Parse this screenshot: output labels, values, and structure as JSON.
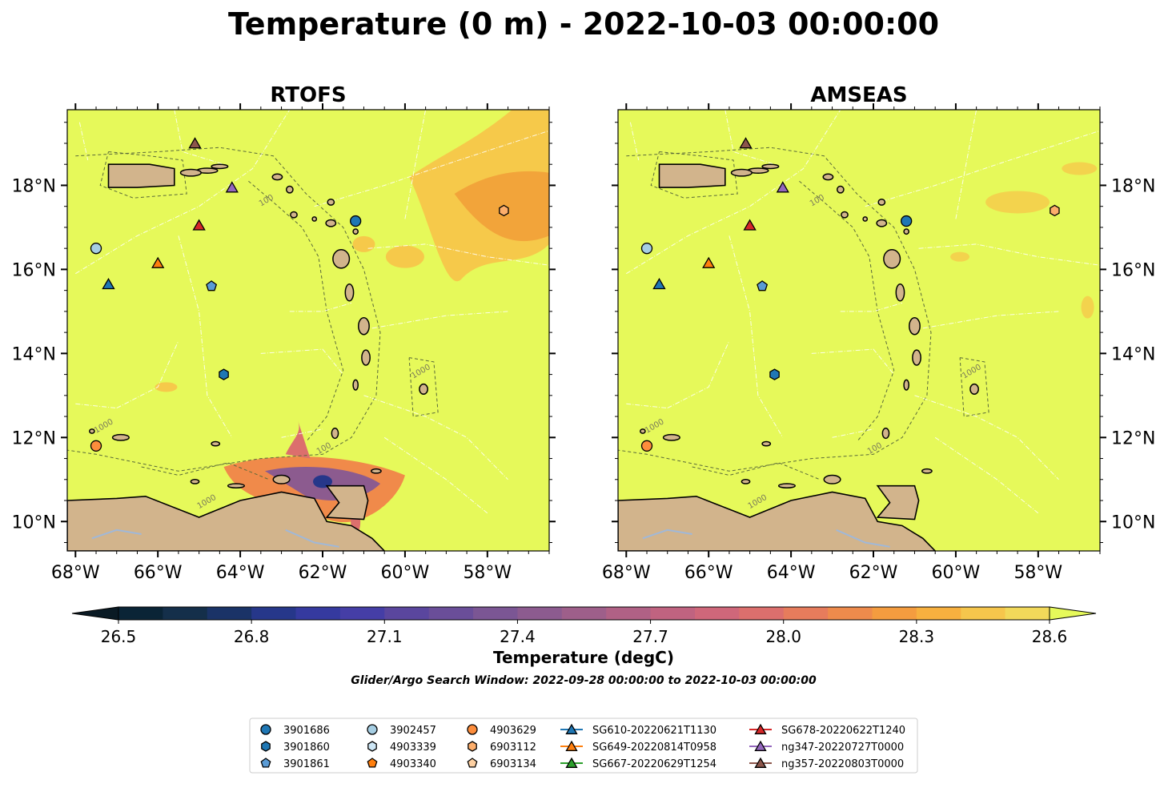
{
  "title": "Temperature (0 m) - 2022-10-03 00:00:00",
  "colors": {
    "land": "#d2b48c",
    "sea": "#e6f95a",
    "warm": "#f6c94a",
    "warmer": "#f2a43a",
    "coast": "#000000",
    "river": "#a0b8d8"
  },
  "chart_data": [
    {
      "type": "heatmap",
      "title": "RTOFS",
      "xlabel": "",
      "ylabel": "",
      "xlim": [
        -68.2,
        -56.5
      ],
      "ylim": [
        9.3,
        19.8
      ],
      "x_ticks": [
        "68°W",
        "66°W",
        "64°W",
        "62°W",
        "60°W",
        "58°W"
      ],
      "y_ticks": [
        "10°N",
        "12°N",
        "14°N",
        "16°N",
        "18°N"
      ],
      "y_tick_side": "left",
      "contour_labels": [
        "100",
        "1000"
      ],
      "note_field": "mostly >= 28.6 degC; warm plume near 60-57W 15-19N ~28.3; cool plume (26.5-28.0) near Gulf of Paria ~11N 62-60W"
    },
    {
      "type": "heatmap",
      "title": "AMSEAS",
      "xlabel": "",
      "ylabel": "",
      "xlim": [
        -68.2,
        -56.5
      ],
      "ylim": [
        9.3,
        19.8
      ],
      "x_ticks": [
        "68°W",
        "66°W",
        "64°W",
        "62°W",
        "60°W",
        "58°W"
      ],
      "y_ticks": [
        "10°N",
        "12°N",
        "14°N",
        "16°N",
        "18°N"
      ],
      "y_tick_side": "right",
      "contour_labels": [
        "100",
        "1000"
      ],
      "note_field": "nearly uniform >= 28.6 degC with small 28.5 patches"
    }
  ],
  "observations": [
    {
      "id": "3901686",
      "type": "argo",
      "marker": "circle",
      "color": "#1f77b4",
      "lon": -61.2,
      "lat": 17.15
    },
    {
      "id": "3901860",
      "type": "argo",
      "marker": "hexagon",
      "color": "#1f77b4",
      "lon": -64.4,
      "lat": 13.5
    },
    {
      "id": "3901861",
      "type": "argo",
      "marker": "pentagon",
      "color": "#5a9bd5",
      "lon": -64.7,
      "lat": 15.6
    },
    {
      "id": "3902457",
      "type": "argo",
      "marker": "circle",
      "color": "#a6cee3",
      "lon": -67.5,
      "lat": 16.5
    },
    {
      "id": "4903339",
      "type": "argo",
      "marker": "hexagon",
      "color": "#cde6f5",
      "lon": null,
      "lat": null
    },
    {
      "id": "4903340",
      "type": "argo",
      "marker": "pentagon",
      "color": "#ff7f0e",
      "lon": null,
      "lat": null
    },
    {
      "id": "4903629",
      "type": "argo",
      "marker": "circle",
      "color": "#fd8d3c",
      "lon": -67.5,
      "lat": 11.8
    },
    {
      "id": "6903112",
      "type": "argo",
      "marker": "hexagon",
      "color": "#fdae6b",
      "lon": -57.6,
      "lat": 17.4
    },
    {
      "id": "6903134",
      "type": "argo",
      "marker": "pentagon",
      "color": "#fdd0a2",
      "lon": null,
      "lat": null
    },
    {
      "id": "SG610-20220621T1130",
      "type": "glider",
      "marker": "triangle",
      "color": "#1f77b4",
      "lon": -67.2,
      "lat": 15.65
    },
    {
      "id": "SG649-20220814T0958",
      "type": "glider",
      "marker": "triangle",
      "color": "#ff7f0e",
      "lon": -66.0,
      "lat": 16.15
    },
    {
      "id": "SG667-20220629T1254",
      "type": "glider",
      "marker": "triangle",
      "color": "#2ca02c",
      "lon": null,
      "lat": null
    },
    {
      "id": "SG678-20220622T1240",
      "type": "glider",
      "marker": "triangle",
      "color": "#d62728",
      "lon": -65.0,
      "lat": 17.05
    },
    {
      "id": "ng347-20220727T0000",
      "type": "glider",
      "marker": "triangle",
      "color": "#9467bd",
      "lon": -64.2,
      "lat": 17.95
    },
    {
      "id": "ng357-20220803T0000",
      "type": "glider",
      "marker": "triangle",
      "color": "#8c564b",
      "lon": -65.1,
      "lat": 19.0
    }
  ],
  "colorbar": {
    "label": "Temperature (degC)",
    "ticks": [
      "26.5",
      "26.8",
      "27.1",
      "27.4",
      "27.7",
      "28.0",
      "28.3",
      "28.6"
    ],
    "min": 26.5,
    "max": 28.6,
    "bins": 21,
    "colors": [
      "#0a2436",
      "#142f4a",
      "#1a3367",
      "#26378a",
      "#353a9f",
      "#453ea6",
      "#5a469e",
      "#6a4e99",
      "#7b5694",
      "#8c5b8f",
      "#9e5f8a",
      "#b06185",
      "#c06380",
      "#cf677a",
      "#dc6f6d",
      "#e67c5c",
      "#ee8b4c",
      "#f49c3f",
      "#f7b03f",
      "#f6c64c",
      "#f2d95a"
    ],
    "over_color": "#e6f95a",
    "under_color": "#0a1a24"
  },
  "subtitle": "Glider/Argo Search Window: 2022-09-28 00:00:00 to 2022-10-03 00:00:00"
}
